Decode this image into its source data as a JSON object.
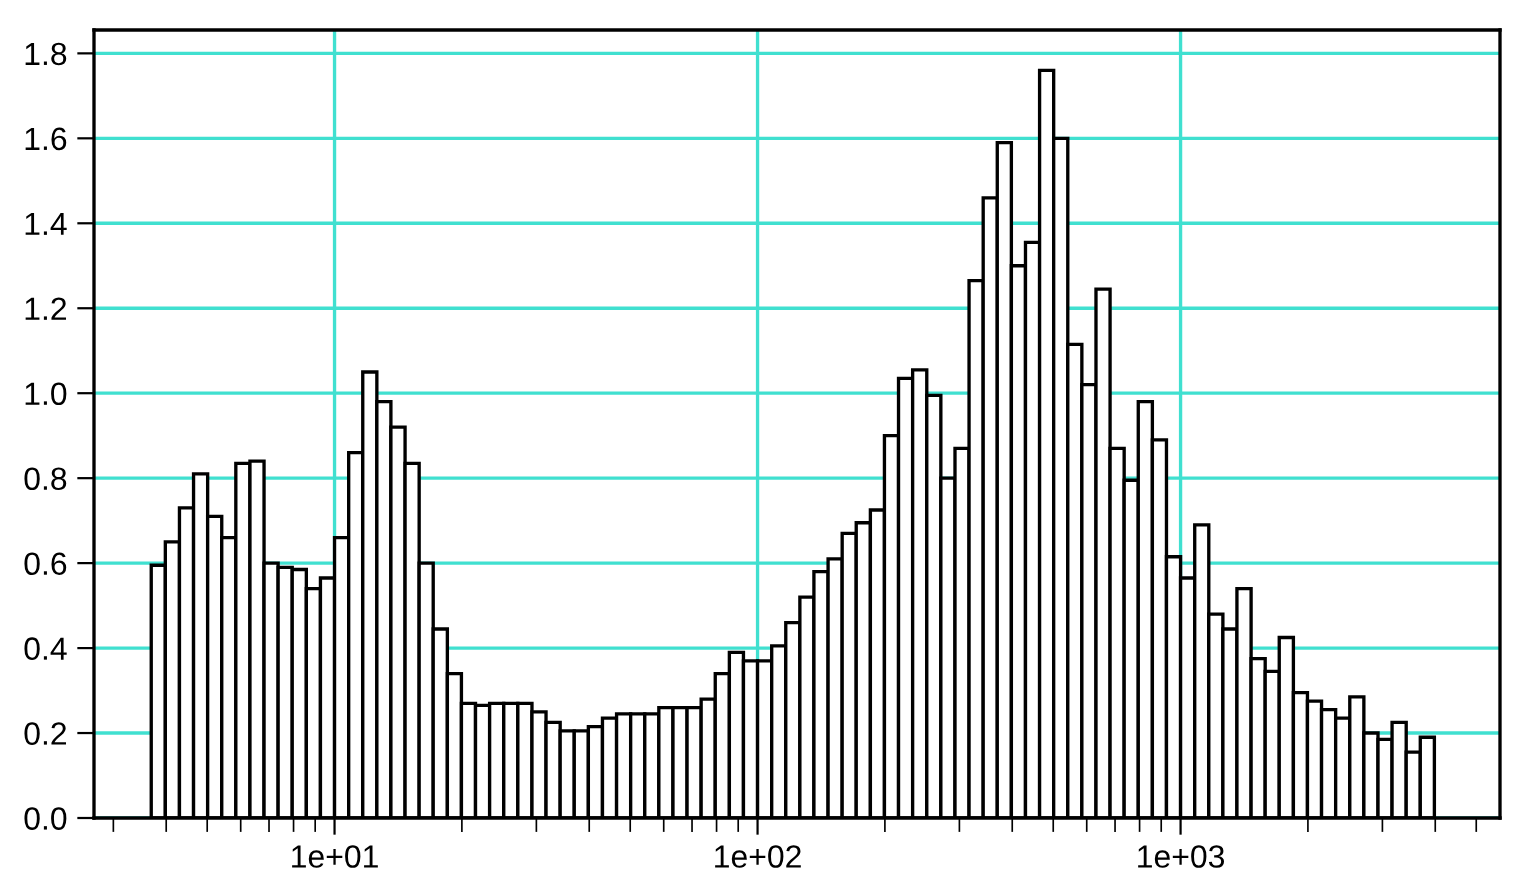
{
  "chart_data": {
    "type": "histogram",
    "bins": [
      3.687,
      3.981,
      4.299,
      4.642,
      5.012,
      5.412,
      5.843,
      6.31,
      6.813,
      7.356,
      7.943,
      8.577,
      9.261,
      10,
      10.8,
      11.66,
      12.59,
      13.59,
      14.68,
      15.85,
      17.11,
      18.48,
      19.95,
      21.54,
      23.26,
      25.12,
      27.12,
      29.29,
      31.62,
      34.15,
      36.87,
      39.81,
      42.99,
      46.42,
      50.12,
      54.12,
      58.43,
      63.1,
      68.13,
      73.56,
      79.43,
      85.77,
      92.61,
      100,
      108,
      116.6,
      125.9,
      135.9,
      146.8,
      158.5,
      171.1,
      184.8,
      199.5,
      215.4,
      232.6,
      251.2,
      271.2,
      292.9,
      316.2,
      341.5,
      368.7,
      398.1,
      429.9,
      464.2,
      501.2,
      541.2,
      584.3,
      631,
      681.3,
      735.6,
      794.3,
      857.7,
      926.1,
      1000,
      1080,
      1166,
      1259,
      1359,
      1468,
      1585,
      1711,
      1848,
      1995,
      2154,
      2326,
      2512,
      2712,
      2929,
      3162,
      3415,
      3687,
      3981
    ],
    "values": [
      0.595,
      0.65,
      0.73,
      0.81,
      0.71,
      0.66,
      0.835,
      0.84,
      0.6,
      0.59,
      0.585,
      0.54,
      0.565,
      0.66,
      0.86,
      1.05,
      0.98,
      0.92,
      0.835,
      0.6,
      0.445,
      0.34,
      0.27,
      0.265,
      0.27,
      0.27,
      0.27,
      0.25,
      0.225,
      0.205,
      0.205,
      0.215,
      0.235,
      0.245,
      0.245,
      0.245,
      0.26,
      0.26,
      0.26,
      0.28,
      0.34,
      0.39,
      0.37,
      0.37,
      0.405,
      0.46,
      0.52,
      0.58,
      0.61,
      0.67,
      0.695,
      0.725,
      0.9,
      1.035,
      1.055,
      0.995,
      0.8,
      0.87,
      1.265,
      1.46,
      1.59,
      1.3,
      1.355,
      1.76,
      1.6,
      1.115,
      1.02,
      1.245,
      0.87,
      0.795,
      0.98,
      0.89,
      0.615,
      0.565,
      0.69,
      0.48,
      0.445,
      0.54,
      0.375,
      0.345,
      0.425,
      0.295,
      0.275,
      0.255,
      0.235,
      0.285,
      0.2,
      0.185,
      0.225,
      0.155,
      0.19
    ],
    "color": "#ffffff",
    "log": "x",
    "xlim": [
      2.7,
      5690
    ],
    "xticks": [
      {
        "value": 3,
        "label": null
      },
      {
        "value": 4,
        "label": null
      },
      {
        "value": 5,
        "label": null
      },
      {
        "value": 6,
        "label": null
      },
      {
        "value": 7,
        "label": null
      },
      {
        "value": 8,
        "label": null
      },
      {
        "value": 9,
        "label": null
      },
      {
        "value": 10,
        "label": "1e+01"
      },
      {
        "value": 20,
        "label": null
      },
      {
        "value": 30,
        "label": null
      },
      {
        "value": 40,
        "label": null
      },
      {
        "value": 50,
        "label": null
      },
      {
        "value": 60,
        "label": null
      },
      {
        "value": 70,
        "label": null
      },
      {
        "value": 80,
        "label": null
      },
      {
        "value": 90,
        "label": null
      },
      {
        "value": 100,
        "label": "1e+02"
      },
      {
        "value": 200,
        "label": null
      },
      {
        "value": 300,
        "label": null
      },
      {
        "value": 400,
        "label": null
      },
      {
        "value": 500,
        "label": null
      },
      {
        "value": 600,
        "label": null
      },
      {
        "value": 700,
        "label": null
      },
      {
        "value": 800,
        "label": null
      },
      {
        "value": 900,
        "label": null
      },
      {
        "value": 1000,
        "label": "1e+03"
      },
      {
        "value": 2000,
        "label": null
      },
      {
        "value": 3000,
        "label": null
      },
      {
        "value": 4000,
        "label": null
      },
      {
        "value": 5000,
        "label": null
      }
    ],
    "ylim": [
      0,
      1.855
    ],
    "yticks": [
      {
        "value": 0,
        "label": "0.0"
      },
      {
        "value": 0.2,
        "label": "0.2"
      },
      {
        "value": 0.4,
        "label": "0.4"
      },
      {
        "value": 0.6,
        "label": "0.6"
      },
      {
        "value": 0.8,
        "label": "0.8"
      },
      {
        "value": 1.0,
        "label": "1.0"
      },
      {
        "value": 1.2,
        "label": "1.2"
      },
      {
        "value": 1.4,
        "label": "1.4"
      },
      {
        "value": 1.6,
        "label": "1.6"
      },
      {
        "value": 1.8,
        "label": "1.8"
      }
    ],
    "grid": true
  }
}
